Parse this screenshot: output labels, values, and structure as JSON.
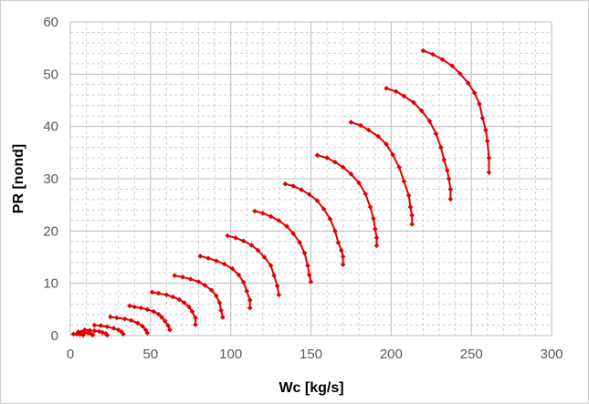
{
  "chart_data": {
    "type": "scatter",
    "title": "",
    "xlabel": "Wc [kg/s]",
    "ylabel": "PR [nond]",
    "xlim": [
      0,
      300
    ],
    "ylim": [
      0,
      60
    ],
    "xticks": [
      "0",
      "50",
      "100",
      "150",
      "200",
      "250",
      "300"
    ],
    "yticks": [
      "0",
      "10",
      "20",
      "30",
      "40",
      "50",
      "60"
    ],
    "grid": "major-solid-minor-dashed",
    "legend": "none",
    "color": "#e00000",
    "series": [
      {
        "x": [
          2,
          4,
          6,
          8
        ],
        "y": [
          0.3,
          0.3,
          0.2,
          0.1
        ]
      },
      {
        "x": [
          5,
          7,
          9,
          11,
          13,
          14
        ],
        "y": [
          0.7,
          0.7,
          0.6,
          0.5,
          0.3,
          0.1
        ]
      },
      {
        "x": [
          9,
          12,
          15,
          18,
          20,
          22,
          23
        ],
        "y": [
          1.1,
          1.0,
          0.9,
          0.8,
          0.6,
          0.4,
          0.1
        ]
      },
      {
        "x": [
          15,
          19,
          23,
          27,
          30,
          32,
          33
        ],
        "y": [
          2.0,
          1.9,
          1.7,
          1.4,
          1.1,
          0.7,
          0.3
        ]
      },
      {
        "x": [
          25,
          29,
          34,
          38,
          42,
          45,
          47,
          48
        ],
        "y": [
          3.6,
          3.4,
          3.2,
          2.9,
          2.4,
          1.8,
          1.1,
          0.5
        ]
      },
      {
        "x": [
          37,
          40,
          44,
          48,
          52,
          55,
          57,
          59,
          61,
          62
        ],
        "y": [
          5.7,
          5.5,
          5.3,
          5.0,
          4.6,
          4.1,
          3.5,
          2.8,
          1.9,
          1.1
        ]
      },
      {
        "x": [
          51,
          55,
          60,
          64,
          68,
          71,
          74,
          76,
          78,
          78
        ],
        "y": [
          8.3,
          8.1,
          7.8,
          7.4,
          6.9,
          6.3,
          5.5,
          4.6,
          3.4,
          2.1
        ]
      },
      {
        "x": [
          65,
          70,
          75,
          80,
          84,
          88,
          91,
          93,
          94,
          95
        ],
        "y": [
          11.5,
          11.2,
          10.8,
          10.3,
          9.6,
          8.7,
          7.6,
          6.3,
          4.8,
          3.5
        ]
      },
      {
        "x": [
          81,
          86,
          91,
          96,
          101,
          105,
          108,
          110,
          112,
          112
        ],
        "y": [
          15.2,
          14.8,
          14.3,
          13.7,
          12.8,
          11.6,
          10.2,
          8.5,
          6.8,
          5.3
        ]
      },
      {
        "x": [
          98,
          103,
          108,
          113,
          117,
          121,
          125,
          127,
          129,
          130
        ],
        "y": [
          19.1,
          18.7,
          18.1,
          17.3,
          16.3,
          15.0,
          13.4,
          11.5,
          9.5,
          7.8
        ]
      },
      {
        "x": [
          115,
          120,
          125,
          130,
          135,
          139,
          143,
          146,
          148,
          149,
          150
        ],
        "y": [
          23.8,
          23.4,
          22.8,
          22.0,
          20.9,
          19.5,
          17.8,
          15.8,
          13.4,
          11.6,
          10.3
        ]
      },
      {
        "x": [
          134,
          139,
          144,
          149,
          154,
          158,
          162,
          165,
          167,
          169,
          170,
          170
        ],
        "y": [
          29.0,
          28.6,
          27.9,
          27.0,
          25.8,
          24.2,
          22.3,
          20.0,
          17.8,
          16.3,
          15.1,
          13.6
        ]
      },
      {
        "x": [
          154,
          160,
          165,
          170,
          175,
          180,
          184,
          187,
          189,
          190,
          191,
          191
        ],
        "y": [
          34.5,
          34.0,
          33.2,
          32.2,
          30.9,
          29.2,
          27.1,
          24.6,
          22.4,
          20.4,
          18.7,
          17.2
        ]
      },
      {
        "x": [
          175,
          181,
          186,
          192,
          197,
          201,
          205,
          208,
          211,
          212,
          213,
          213
        ],
        "y": [
          40.8,
          40.2,
          39.3,
          38.1,
          36.6,
          34.6,
          32.2,
          29.5,
          26.8,
          24.6,
          23.0,
          21.3
        ]
      },
      {
        "x": [
          197,
          203,
          208,
          214,
          219,
          224,
          228,
          231,
          233,
          235,
          236,
          237,
          237
        ],
        "y": [
          47.3,
          46.7,
          45.8,
          44.6,
          43.0,
          41.0,
          38.6,
          36.0,
          33.6,
          31.6,
          30.0,
          28.0,
          26.1
        ]
      },
      {
        "x": [
          220,
          226,
          232,
          238,
          243,
          248,
          252,
          255,
          257,
          259,
          260,
          261,
          261
        ],
        "y": [
          54.5,
          53.8,
          52.8,
          51.6,
          50.1,
          48.3,
          46.4,
          44.3,
          41.6,
          39.3,
          37.2,
          34.0,
          31.2
        ]
      }
    ]
  }
}
